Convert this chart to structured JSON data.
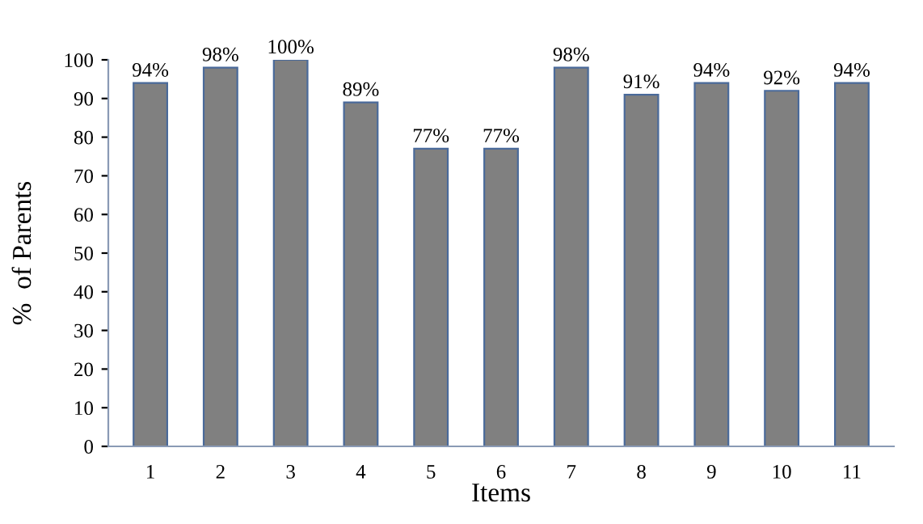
{
  "chart_data": {
    "type": "bar",
    "xlabel": "Items",
    "ylabel": "%  of Parents",
    "categories": [
      "1",
      "2",
      "3",
      "4",
      "5",
      "6",
      "7",
      "8",
      "9",
      "10",
      "11"
    ],
    "values": [
      94,
      98,
      100,
      89,
      77,
      77,
      98,
      91,
      94,
      92,
      94
    ],
    "value_labels": [
      "94%",
      "98%",
      "100%",
      "89%",
      "77%",
      "77%",
      "98%",
      "91%",
      "94%",
      "92%",
      "94%"
    ],
    "color": "#808080",
    "ylim": [
      0,
      100
    ],
    "yticks": [
      0,
      10,
      20,
      30,
      40,
      50,
      60,
      70,
      80,
      90,
      100
    ],
    "grid": false,
    "legend": false
  }
}
